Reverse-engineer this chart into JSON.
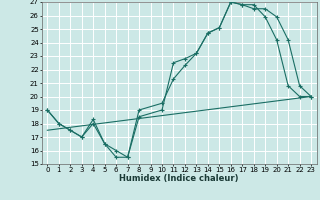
{
  "bg_color": "#cce8e6",
  "line_color": "#1a6e64",
  "grid_color": "#aad8d4",
  "xlabel": "Humidex (Indice chaleur)",
  "xlim": [
    -0.5,
    23.5
  ],
  "ylim": [
    15,
    27
  ],
  "yticks": [
    15,
    16,
    17,
    18,
    19,
    20,
    21,
    22,
    23,
    24,
    25,
    26,
    27
  ],
  "xticks": [
    0,
    1,
    2,
    3,
    4,
    5,
    6,
    7,
    8,
    9,
    10,
    11,
    12,
    13,
    14,
    15,
    16,
    17,
    18,
    19,
    20,
    21,
    22,
    23
  ],
  "line1_x": [
    0,
    1,
    2,
    3,
    4,
    5,
    6,
    7,
    8,
    10,
    11,
    12,
    13,
    14,
    15,
    16,
    17,
    18,
    19,
    20,
    21,
    22,
    23
  ],
  "line1_y": [
    19,
    18,
    17.5,
    17,
    18,
    16.5,
    15.5,
    15.5,
    18.5,
    19,
    22.5,
    22.8,
    23.2,
    24.7,
    25.1,
    27,
    26.8,
    26.8,
    25.9,
    24.2,
    20.8,
    20,
    20
  ],
  "line2_x": [
    0,
    1,
    2,
    3,
    4,
    5,
    6,
    7,
    8,
    10,
    11,
    12,
    13,
    14,
    15,
    16,
    17,
    18,
    19,
    20,
    21,
    22,
    23
  ],
  "line2_y": [
    19,
    18,
    17.5,
    17,
    18.3,
    16.5,
    16,
    15.5,
    19,
    19.5,
    21.3,
    22.3,
    23.2,
    24.7,
    25.1,
    27,
    26.8,
    26.5,
    26.5,
    25.9,
    24.2,
    20.8,
    20
  ],
  "line3_x": [
    0,
    23
  ],
  "line3_y": [
    17.5,
    20
  ],
  "tick_fontsize": 5.0,
  "label_fontsize": 6.0
}
